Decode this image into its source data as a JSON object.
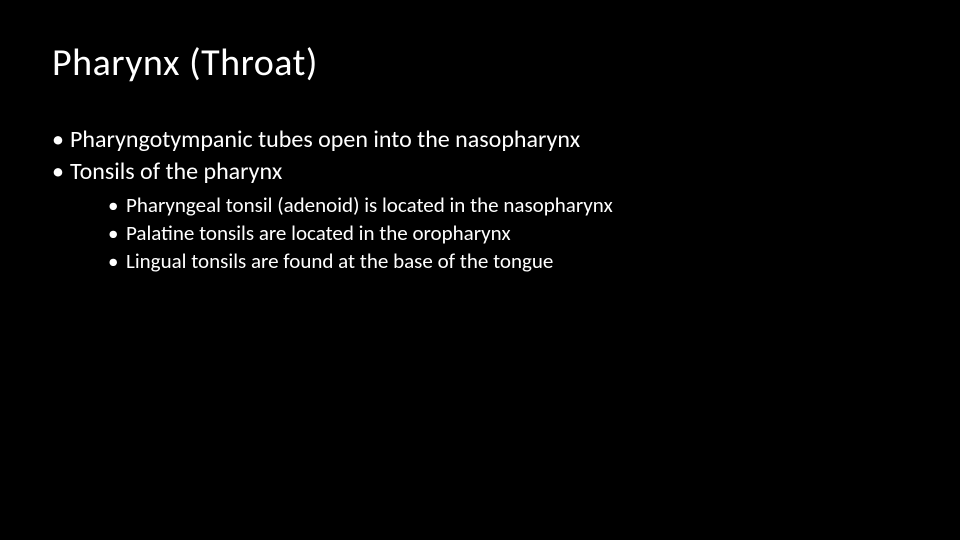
{
  "slide": {
    "title": "Pharynx (Throat)",
    "bullets": [
      {
        "text": "Pharyngotympanic tubes open into the nasopharynx"
      },
      {
        "text": "Tonsils of the pharynx",
        "sub": [
          "Pharyngeal tonsil (adenoid) is located in the nasopharynx",
          "Palatine tonsils are located in the oropharynx",
          "Lingual tonsils are found at the base of the tongue"
        ]
      }
    ]
  },
  "style": {
    "background_color": "#000000",
    "text_color": "#ffffff",
    "title_fontsize": 38,
    "body_fontsize": 24,
    "sub_fontsize": 21,
    "font_family": "Calibri"
  }
}
